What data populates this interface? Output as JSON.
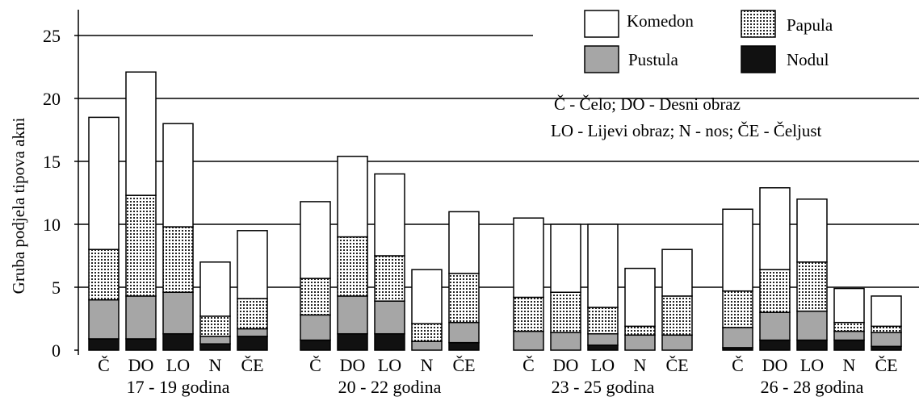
{
  "chart_data": {
    "type": "bar",
    "stacked": true,
    "title": "",
    "xlabel": "",
    "ylabel": "Gruba podjela tipova akni",
    "ylim": [
      0,
      25
    ],
    "yticks": [
      "0",
      "5",
      "10",
      "15",
      "20",
      "25"
    ],
    "grid": true,
    "legend_position": "top-right",
    "groups": [
      {
        "label": "17 - 19 godina",
        "categories": [
          "Č",
          "DO",
          "LO",
          "N",
          "ČE"
        ],
        "nodul": [
          0.9,
          0.9,
          1.3,
          0.5,
          1.1
        ],
        "pustula": [
          3.1,
          3.4,
          3.3,
          0.6,
          0.6
        ],
        "papula": [
          4.0,
          8.0,
          5.2,
          1.6,
          2.4
        ],
        "komedon": [
          10.5,
          9.8,
          8.2,
          4.3,
          5.4
        ]
      },
      {
        "label": "20 - 22 godina",
        "categories": [
          "Č",
          "DO",
          "LO",
          "N",
          "ČE"
        ],
        "nodul": [
          0.8,
          1.3,
          1.3,
          0.0,
          0.6
        ],
        "pustula": [
          2.0,
          3.0,
          2.6,
          0.7,
          1.6
        ],
        "papula": [
          2.9,
          4.7,
          3.6,
          1.4,
          3.9
        ],
        "komedon": [
          6.1,
          6.4,
          6.5,
          4.3,
          4.9
        ]
      },
      {
        "label": "23 - 25 godina",
        "categories": [
          "Č",
          "DO",
          "LO",
          "N",
          "ČE"
        ],
        "nodul": [
          0.0,
          0.0,
          0.4,
          0.0,
          0.0
        ],
        "pustula": [
          1.5,
          1.4,
          0.9,
          1.2,
          1.2
        ],
        "papula": [
          2.7,
          3.2,
          2.1,
          0.7,
          3.1
        ],
        "komedon": [
          6.3,
          5.4,
          6.6,
          4.6,
          3.7
        ]
      },
      {
        "label": "26 - 28 godina",
        "categories": [
          "Č",
          "DO",
          "LO",
          "N",
          "ČE"
        ],
        "nodul": [
          0.2,
          0.8,
          0.8,
          0.8,
          0.3
        ],
        "pustula": [
          1.6,
          2.2,
          2.3,
          0.7,
          1.1
        ],
        "papula": [
          2.9,
          3.4,
          3.9,
          0.7,
          0.5
        ],
        "komedon": [
          6.5,
          6.5,
          5.0,
          2.7,
          2.4
        ]
      }
    ],
    "legend": [
      {
        "name": "Komedon",
        "fill": "white"
      },
      {
        "name": "Papula",
        "fill": "dots"
      },
      {
        "name": "Pustula",
        "fill": "gray"
      },
      {
        "name": "Nodul",
        "fill": "black"
      }
    ],
    "abbrev_line1": "Č - Čelo; DO - Desni obraz",
    "abbrev_line2": "LO - Lijevi obraz; N - nos; ČE - Čeljust",
    "colors": {
      "pustula": "#a6a6a6",
      "nodul": "#111111",
      "komedon": "#ffffff",
      "dots": "#222222"
    }
  }
}
